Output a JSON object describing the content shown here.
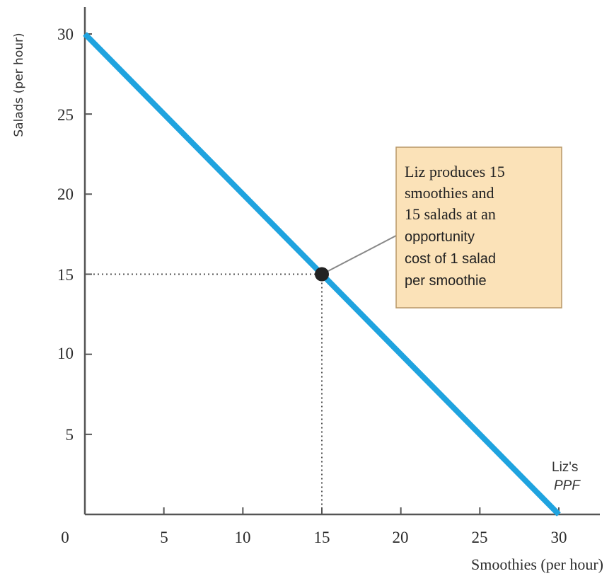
{
  "chart_data": {
    "type": "line",
    "title": "",
    "xlabel": "Smoothies (per hour)",
    "ylabel": "Salads (per hour)",
    "xlim": [
      0,
      30
    ],
    "ylim": [
      0,
      30
    ],
    "x_ticks": [
      "0",
      "5",
      "10",
      "15",
      "20",
      "25",
      "30"
    ],
    "y_ticks": [
      "5",
      "10",
      "15",
      "20",
      "25",
      "30"
    ],
    "grid": false,
    "series": [
      {
        "name": "Liz's PPF",
        "x": [
          0,
          30
        ],
        "y": [
          30,
          0
        ],
        "color": "#1fa3df"
      }
    ],
    "points": [
      {
        "x": 15,
        "y": 15
      }
    ],
    "annotation": {
      "lines": [
        "Liz produces 15",
        "smoothies and",
        "15 salads at an",
        "opportunity",
        "cost of 1 salad",
        "per smoothie"
      ]
    },
    "curve_label": {
      "line1": "Liz's",
      "line2": "PPF"
    }
  },
  "colors": {
    "ppf_line": "#1fa3df",
    "axis": "#555555",
    "callout_fill": "#fbe2b8",
    "callout_border": "#b89868",
    "point": "#222222"
  }
}
